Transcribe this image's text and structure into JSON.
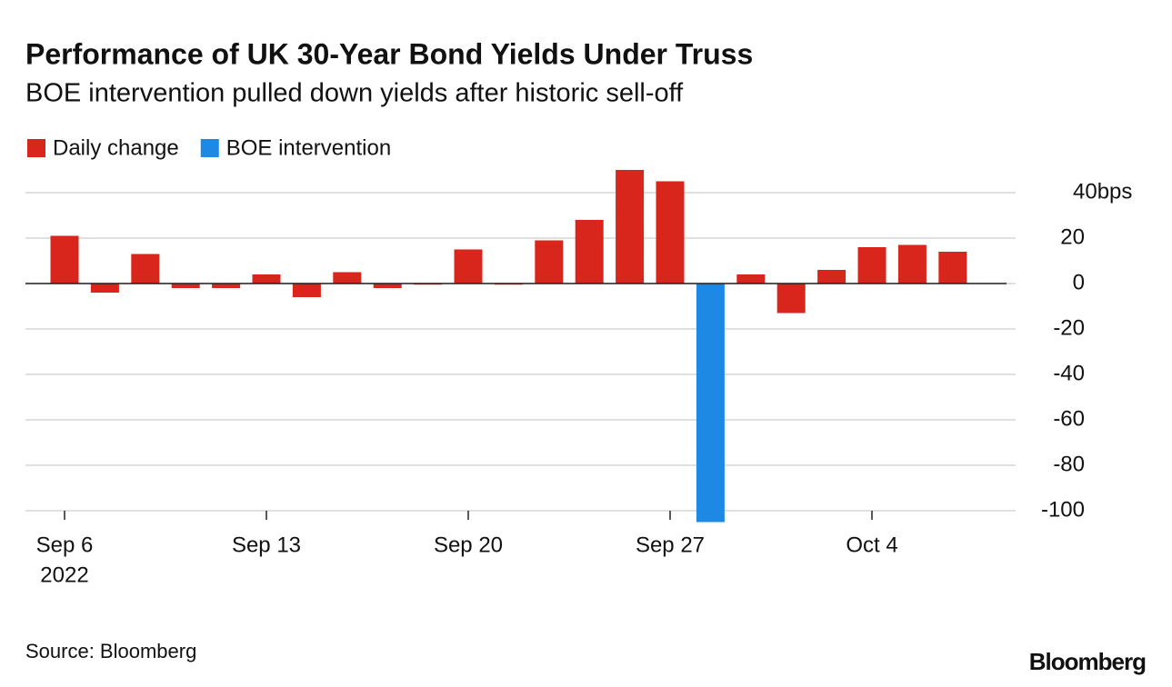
{
  "chart_data": {
    "type": "bar",
    "title": "Performance of UK 30-Year Bond Yields Under Truss",
    "subtitle": "BOE intervention pulled down yields after historic sell-off",
    "categories": [
      "Sep 6",
      null,
      null,
      null,
      null,
      "Sep 13",
      null,
      null,
      null,
      null,
      "Sep 20",
      null,
      null,
      null,
      null,
      "Sep 27",
      null,
      null,
      null,
      null,
      "Oct 4",
      null,
      null
    ],
    "x_sublabel": "2022",
    "series": [
      {
        "name": "Daily change",
        "color": "#d9261c",
        "values": [
          21,
          -4,
          13,
          -2,
          -2,
          4,
          -6,
          5,
          -2,
          -0.5,
          15,
          -0.5,
          19,
          28,
          50,
          45,
          null,
          4,
          -13,
          6,
          16,
          17,
          14
        ]
      },
      {
        "name": "BOE intervention",
        "color": "#1e88e5",
        "values": [
          null,
          null,
          null,
          null,
          null,
          null,
          null,
          null,
          null,
          null,
          null,
          null,
          null,
          null,
          null,
          null,
          -105,
          null,
          null,
          null,
          null,
          null,
          null
        ]
      }
    ],
    "ylim": [
      -105,
      50
    ],
    "yticks": [
      {
        "value": 40,
        "label": "40bps"
      },
      20,
      0,
      -20,
      -40,
      -60,
      -80,
      -100
    ],
    "grid": true,
    "source": "Source: Bloomberg",
    "brand": "Bloomberg"
  }
}
